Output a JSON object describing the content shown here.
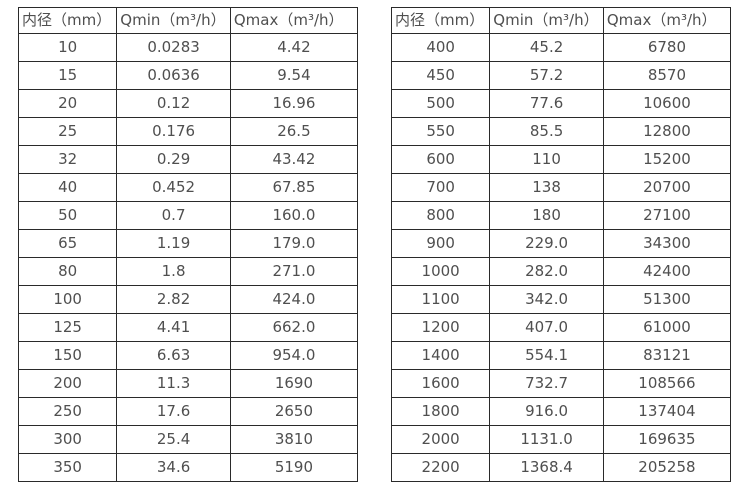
{
  "colors": {
    "background": "#ffffff",
    "border": "#2a2a2a",
    "text": "#4f4f4f"
  },
  "left_table": {
    "headers": [
      "内径（mm）",
      "Qmin（m³/h）",
      "Qmax（m³/h）"
    ],
    "rows": [
      [
        "10",
        "0.0283",
        "4.42"
      ],
      [
        "15",
        "0.0636",
        "9.54"
      ],
      [
        "20",
        "0.12",
        "16.96"
      ],
      [
        "25",
        "0.176",
        "26.5"
      ],
      [
        "32",
        "0.29",
        "43.42"
      ],
      [
        "40",
        "0.452",
        "67.85"
      ],
      [
        "50",
        "0.7",
        "160.0"
      ],
      [
        "65",
        "1.19",
        "179.0"
      ],
      [
        "80",
        "1.8",
        "271.0"
      ],
      [
        "100",
        "2.82",
        "424.0"
      ],
      [
        "125",
        "4.41",
        "662.0"
      ],
      [
        "150",
        "6.63",
        "954.0"
      ],
      [
        "200",
        "11.3",
        "1690"
      ],
      [
        "250",
        "17.6",
        "2650"
      ],
      [
        "300",
        "25.4",
        "3810"
      ],
      [
        "350",
        "34.6",
        "5190"
      ]
    ]
  },
  "right_table": {
    "headers": [
      "内径（mm）",
      "Qmin（m³/h）",
      "Qmax（m³/h）"
    ],
    "rows": [
      [
        "400",
        "45.2",
        "6780"
      ],
      [
        "450",
        "57.2",
        "8570"
      ],
      [
        "500",
        "77.6",
        "10600"
      ],
      [
        "550",
        "85.5",
        "12800"
      ],
      [
        "600",
        "110",
        "15200"
      ],
      [
        "700",
        "138",
        "20700"
      ],
      [
        "800",
        "180",
        "27100"
      ],
      [
        "900",
        "229.0",
        "34300"
      ],
      [
        "1000",
        "282.0",
        "42400"
      ],
      [
        "1100",
        "342.0",
        "51300"
      ],
      [
        "1200",
        "407.0",
        "61000"
      ],
      [
        "1400",
        "554.1",
        "83121"
      ],
      [
        "1600",
        "732.7",
        "108566"
      ],
      [
        "1800",
        "916.0",
        "137404"
      ],
      [
        "2000",
        "1131.0",
        "169635"
      ],
      [
        "2200",
        "1368.4",
        "205258"
      ]
    ]
  }
}
